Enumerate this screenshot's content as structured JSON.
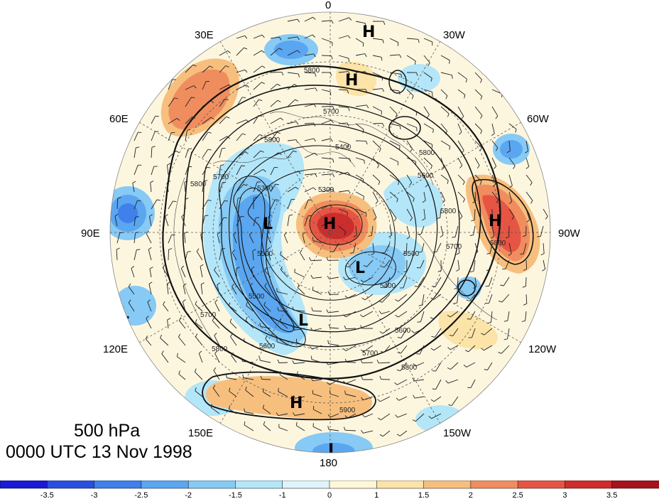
{
  "title": {
    "level": "500 hPa",
    "time": "0000 UTC 13 Nov 1998"
  },
  "longitude_labels": [
    "0",
    "30W",
    "60W",
    "90W",
    "120W",
    "150W",
    "180",
    "150E",
    "120E",
    "90E",
    "60E",
    "30E"
  ],
  "contour_labels": [
    "5800",
    "5700",
    "5600",
    "5500",
    "5400",
    "5300",
    "5900"
  ],
  "pressure_centers": [
    {
      "type": "H",
      "label": "H"
    },
    {
      "type": "H",
      "label": "H"
    },
    {
      "type": "H",
      "label": "H"
    },
    {
      "type": "H",
      "label": "H"
    },
    {
      "type": "H",
      "label": "H"
    },
    {
      "type": "L",
      "label": "L"
    },
    {
      "type": "L",
      "label": "L"
    },
    {
      "type": "L",
      "label": "L"
    },
    {
      "type": "L",
      "label": "L"
    },
    {
      "type": "L",
      "label": "L"
    }
  ],
  "colorbar": {
    "ticks": [
      "-3.5",
      "-3",
      "-2.5",
      "-2",
      "-1.5",
      "-1",
      "0",
      "1",
      "1.5",
      "2",
      "2.5",
      "3",
      "3.5"
    ],
    "colors": [
      "#1a1ad6",
      "#2a4fe0",
      "#3f80ea",
      "#5aa6f0",
      "#86caf5",
      "#b3e6f8",
      "#dff4f8",
      "#fff8d6",
      "#fce3a8",
      "#f7bf7e",
      "#f08d5e",
      "#e65544",
      "#cf2c2c",
      "#a6121e"
    ]
  },
  "colors": {
    "ocean_background": "#fdf6df",
    "contour": "#111111",
    "grid": "#555555"
  }
}
